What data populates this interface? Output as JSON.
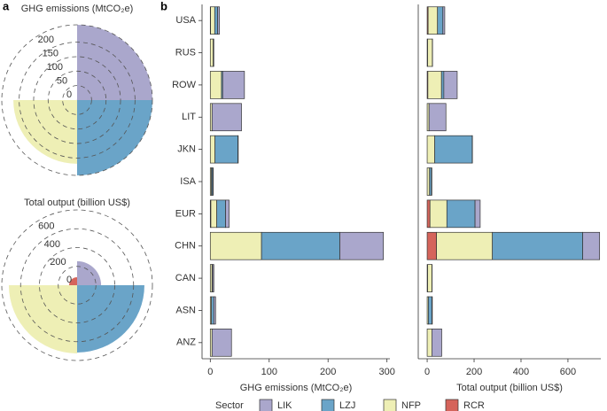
{
  "chart_data": [
    {
      "type": "polar",
      "panel_label": "a",
      "title": "GHG emissions (MtCO₂e)",
      "values": [
        260,
        260,
        220,
        1
      ],
      "colors": [
        "#aaa7cc",
        "#6aa4c8",
        "#eeefb5",
        "#d5645b"
      ],
      "rlim": [
        0,
        260
      ],
      "rticks": [
        0,
        50,
        100,
        150,
        200
      ]
    },
    {
      "type": "polar",
      "title": "Total output (billion US$)",
      "values": [
        255,
        715,
        725,
        85
      ],
      "colors": [
        "#aaa7cc",
        "#6aa4c8",
        "#eeefb5",
        "#d5645b"
      ],
      "rlim": [
        0,
        800
      ],
      "rticks": [
        0,
        200,
        400,
        600
      ]
    },
    {
      "type": "bar",
      "panel_label": "b",
      "orientation": "horizontal",
      "stacked": true,
      "categories": [
        "USA",
        "RUS",
        "ROW",
        "LIT",
        "JKN",
        "ISA",
        "EUR",
        "CHN",
        "CAN",
        "ASN",
        "ANZ"
      ],
      "series": [
        {
          "name": "RCR",
          "color": "#d5645b",
          "values": [
            0.5,
            0,
            0,
            0,
            0,
            0,
            1,
            0,
            0,
            0,
            0
          ]
        },
        {
          "name": "NFP",
          "color": "#eeefb5",
          "values": [
            7,
            5,
            19,
            3,
            8,
            2,
            10,
            87,
            3,
            2,
            3
          ]
        },
        {
          "name": "LZJ",
          "color": "#6aa4c8",
          "values": [
            5,
            0,
            2,
            0,
            39,
            2,
            15,
            133,
            1,
            4,
            0
          ]
        },
        {
          "name": "LIK",
          "color": "#aaa7cc",
          "values": [
            3,
            1,
            37,
            50,
            0.5,
            1,
            6,
            74,
            2,
            3,
            33
          ]
        }
      ],
      "xlim": [
        -14,
        305
      ],
      "xticks": [
        0,
        100,
        200,
        300
      ],
      "xlabel": "GHG emissions (MtCO₂e)",
      "legend_title": "Sector"
    },
    {
      "type": "bar",
      "orientation": "horizontal",
      "stacked": true,
      "series": [
        {
          "color": "#d5645b",
          "values": [
            4,
            2,
            3,
            0,
            0,
            0,
            12,
            40,
            2,
            0,
            0
          ]
        },
        {
          "color": "#eeefb5",
          "values": [
            40,
            20,
            58,
            8,
            32,
            10,
            72,
            238,
            18,
            5,
            20
          ]
        },
        {
          "color": "#6aa4c8",
          "values": [
            23,
            0,
            10,
            0,
            160,
            8,
            120,
            385,
            0,
            15,
            0
          ]
        },
        {
          "color": "#aaa7cc",
          "values": [
            8,
            1,
            57,
            72,
            1,
            2,
            22,
            72,
            1,
            2,
            42
          ]
        }
      ],
      "xlim": [
        -38,
        740
      ],
      "xticks": [
        0,
        200,
        400,
        600
      ],
      "xlabel": "Total output (billion US$)"
    }
  ]
}
